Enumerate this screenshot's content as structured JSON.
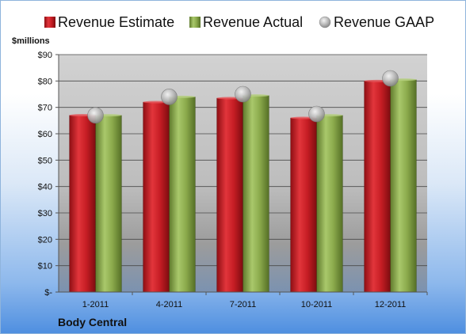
{
  "chart_data": {
    "type": "bar",
    "categories": [
      "1-2011",
      "4-2011",
      "7-2011",
      "10-2011",
      "12-2011"
    ],
    "series": [
      {
        "name": "Revenue Estimate",
        "values": [
          67,
          72,
          73.5,
          66,
          80
        ]
      },
      {
        "name": "Revenue Actual",
        "values": [
          67,
          74,
          74.5,
          67,
          80.5
        ]
      },
      {
        "name": "Revenue GAAP",
        "values": [
          67,
          74,
          75,
          67.5,
          81
        ]
      }
    ],
    "ylabel": "$millions",
    "ylim": [
      0,
      90
    ],
    "yticks": [
      0,
      10,
      20,
      30,
      40,
      50,
      60,
      70,
      80,
      90
    ],
    "ytick_labels": [
      "$-",
      "$10",
      "$20",
      "$30",
      "$40",
      "$50",
      "$60",
      "$70",
      "$80",
      "$90"
    ],
    "grid": true,
    "legend_position": "top",
    "company": "Body Central",
    "colors": {
      "estimate": "#cc1f27",
      "actual": "#8fb04f",
      "gaap": "#b5b5b5"
    }
  }
}
